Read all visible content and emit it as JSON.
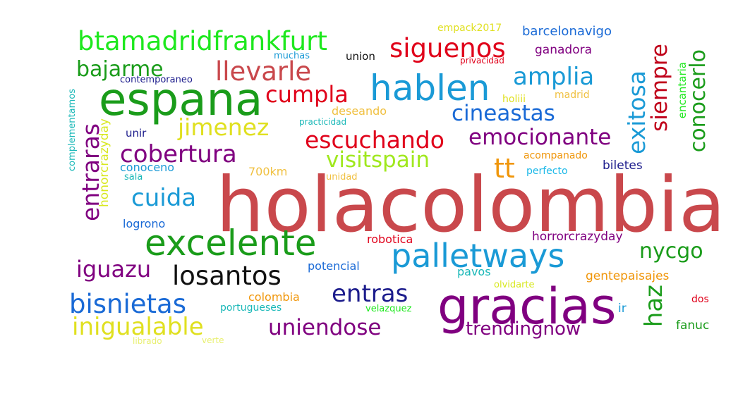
{
  "words": {
    "holacolombia": "holacolombia",
    "gracias": "gracias",
    "espana": "espana",
    "hablen": "hablen",
    "excelente": "excelente",
    "palletways": "palletways",
    "btamadridfrankfurt": "btamadridfrankfurt",
    "siguenos": "siguenos",
    "llevarle": "llevarle",
    "bajarme": "bajarme",
    "amplia": "amplia",
    "cumpla": "cumpla",
    "cineastas": "cineastas",
    "jimenez": "jimenez",
    "escuchando": "escuchando",
    "emocionante": "emocionante",
    "cobertura": "cobertura",
    "visitspain": "visitspain",
    "tt": "tt",
    "cuida": "cuida",
    "iguazu": "iguazu",
    "losantos": "losantos",
    "nycgo": "nycgo",
    "entras": "entras",
    "bisnietas": "bisnietas",
    "inigualable": "inigualable",
    "uniendose": "uniendose",
    "trendingnow": "trendingnow",
    "haz": "haz",
    "entraras": "entraras",
    "exitosa": "exitosa",
    "siempre": "siempre",
    "conocerlo": "conocerlo",
    "barcelonavigo": "barcelonavigo",
    "empack2017": "empack2017",
    "ganadora": "ganadora",
    "muchas": "muchas",
    "union": "union",
    "privacidad": "privacidad",
    "contemporaneo": "contemporaneo",
    "deseando": "deseando",
    "holiii": "holiii",
    "madrid": "madrid",
    "practicidad": "practicidad",
    "unir": "unir",
    "complementamos": "complementamos",
    "honorcrazyday": "honorcrazyday",
    "conoceno": "conoceno",
    "sala": "sala",
    "700km": "700km",
    "unidad": "unidad",
    "acompanado": "acompanado",
    "perfecto": "perfecto",
    "biletes": "biletes",
    "encantaria": "encantaria",
    "logrono": "logrono",
    "robotica": "robotica",
    "horrorcrazyday": "horrorcrazyday",
    "potencial": "potencial",
    "pavos": "pavos",
    "gentepaisajes": "gentepaisajes",
    "olvidarte": "olvidarte",
    "colombia": "colombia",
    "portugueses": "portugueses",
    "velazquez": "velazquez",
    "ir": "ir",
    "dos": "dos",
    "fanuc": "fanuc",
    "librado": "librado",
    "verte": "verte"
  },
  "colors": {
    "red": "#c9484c",
    "purple": "#800080",
    "green": "#1a9c1a",
    "lime": "#1ee81e",
    "blue": "#1a9ad6",
    "navy": "#1c1c8c",
    "yellow": "#e0e020",
    "orange": "#f0960a",
    "black": "#111111"
  }
}
